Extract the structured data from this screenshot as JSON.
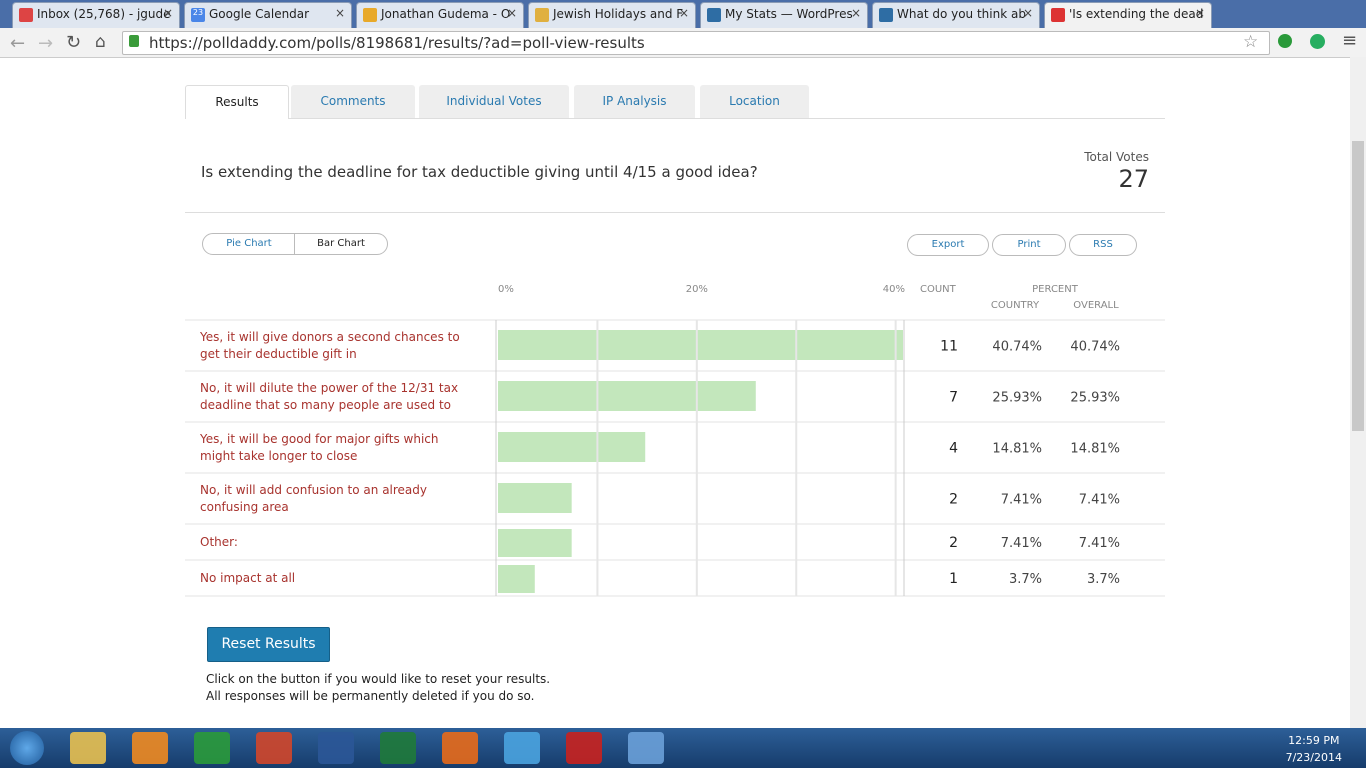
{
  "browser": {
    "tabs": [
      "Inbox (25,768) - jgude",
      "Google Calendar",
      "Jonathan Gudema - O",
      "Jewish Holidays and F",
      "My Stats — WordPres",
      "What do you think ab",
      "'Is extending the dead"
    ],
    "calendar_icon": "23",
    "url": "https://polldaddy.com/polls/8198681/results/?ad=poll-view-results"
  },
  "nav_tabs": [
    "Results",
    "Comments",
    "Individual Votes",
    "IP Analysis",
    "Location"
  ],
  "poll": {
    "question": "Is extending the deadline for tax deductible giving until 4/15 a good idea?",
    "total_votes_label": "Total Votes",
    "total_votes": 27
  },
  "view_buttons": [
    "Pie Chart",
    "Bar Chart"
  ],
  "actions": [
    "Export",
    "Print",
    "RSS"
  ],
  "table_headers": {
    "count": "COUNT",
    "percent": "PERCENT",
    "country": "COUNTRY",
    "overall": "OVERALL"
  },
  "chart_data": {
    "type": "bar",
    "orientation": "horizontal",
    "color": "#c3e7bc",
    "categories": [
      "Yes, it will give donors a second chances to get their deductible gift in",
      "No, it will dilute the power of the 12/31 tax deadline that so many people are used to",
      "Yes, it will be good for major gifts which might take longer to close",
      "No, it will add confusion to an already confusing area",
      "Other:",
      "No impact at all"
    ],
    "values": [
      40.74,
      25.93,
      14.81,
      7.41,
      7.41,
      3.7
    ],
    "value_labels": [
      "40.74%",
      "25.93%",
      "14.81%",
      "7.41%",
      "7.41%",
      "3.7%"
    ],
    "country_value_labels": [
      "40.74%",
      "25.93%",
      "14.81%",
      "7.41%",
      "7.41%",
      "3.7%"
    ],
    "counts": [
      11,
      7,
      4,
      2,
      2,
      1
    ],
    "xlim": [
      0,
      40.74
    ],
    "xticks": [
      {
        "value": 0,
        "label": "0%"
      },
      {
        "value": 10,
        "label": null
      },
      {
        "value": 20,
        "label": "20%"
      },
      {
        "value": 30,
        "label": null
      },
      {
        "value": 40,
        "label": "40%"
      }
    ],
    "grid": true
  },
  "reset": {
    "button": "Reset Results",
    "note1": "Click on the button if you would like to reset your results.",
    "note2": "All responses will be permanently deleted if you do so."
  },
  "taskbar": {
    "time": "12:59 PM",
    "date": "7/23/2014"
  }
}
